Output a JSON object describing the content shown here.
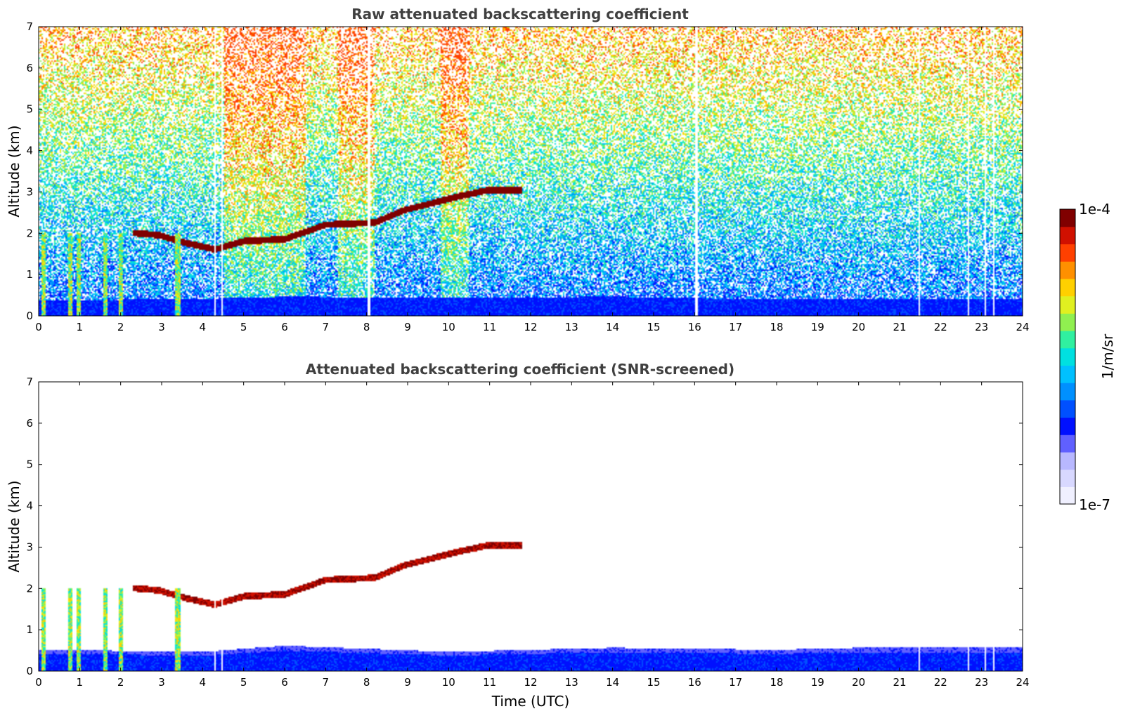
{
  "colormap": [
    "#f0f0ff",
    "#d8d8ff",
    "#b8b8ff",
    "#6060ff",
    "#0010ff",
    "#0050ff",
    "#0090ff",
    "#00c0ff",
    "#00e0e0",
    "#30f0a0",
    "#90f050",
    "#e0f020",
    "#ffd000",
    "#ff9000",
    "#ff4000",
    "#d01000",
    "#800000"
  ],
  "colorbar": {
    "label": "1/m/sr",
    "max_label": "1e-4",
    "min_label": "1e-7"
  },
  "chart_data": [
    {
      "type": "heatmap",
      "title": "Raw attenuated backscattering coefficient",
      "xlabel": "",
      "ylabel": "Altitude (km)",
      "xlim": [
        0,
        24
      ],
      "ylim": [
        0,
        7
      ],
      "xticks": [
        "0",
        "1",
        "2",
        "3",
        "4",
        "5",
        "6",
        "7",
        "8",
        "9",
        "10",
        "11",
        "12",
        "13",
        "14",
        "15",
        "16",
        "17",
        "18",
        "19",
        "20",
        "21",
        "22",
        "23",
        "24"
      ],
      "yticks": [
        "0",
        "1",
        "2",
        "3",
        "4",
        "5",
        "6",
        "7"
      ],
      "noise_background": true,
      "boundary_layer_top_km": [
        [
          0,
          0.35
        ],
        [
          4,
          0.4
        ],
        [
          6,
          0.45
        ],
        [
          10,
          0.42
        ],
        [
          14,
          0.45
        ],
        [
          18,
          0.38
        ],
        [
          20,
          0.4
        ],
        [
          24,
          0.38
        ]
      ],
      "cloud_layer": [
        [
          2.3,
          2.0
        ],
        [
          2.9,
          1.95
        ],
        [
          3.6,
          1.75
        ],
        [
          4.3,
          1.6
        ],
        [
          5,
          1.8
        ],
        [
          6,
          1.85
        ],
        [
          7,
          2.2
        ],
        [
          8.2,
          2.25
        ],
        [
          8.9,
          2.55
        ],
        [
          9.5,
          2.7
        ],
        [
          10.3,
          2.9
        ],
        [
          11,
          3.05
        ],
        [
          11.8,
          3.05
        ]
      ],
      "low_cloud_columns": [
        [
          0.05,
          0.15
        ],
        [
          0.7,
          0.8
        ],
        [
          0.9,
          1.0
        ],
        [
          1.55,
          1.65
        ],
        [
          1.95,
          2.05
        ],
        [
          3.3,
          3.45
        ]
      ],
      "gaps_hours": [
        4.3,
        4.45,
        8.05,
        16.05,
        21.5,
        22.7,
        23.1,
        23.3
      ]
    },
    {
      "type": "heatmap",
      "title": "Attenuated backscattering coefficient (SNR-screened)",
      "xlabel": "Time (UTC)",
      "ylabel": "Altitude (km)",
      "xlim": [
        0,
        24
      ],
      "ylim": [
        0,
        7
      ],
      "xticks": [
        "0",
        "1",
        "2",
        "3",
        "4",
        "5",
        "6",
        "7",
        "8",
        "9",
        "10",
        "11",
        "12",
        "13",
        "14",
        "15",
        "16",
        "17",
        "18",
        "19",
        "20",
        "21",
        "22",
        "23",
        "24"
      ],
      "yticks": [
        "0",
        "1",
        "2",
        "3",
        "4",
        "5",
        "6",
        "7"
      ],
      "noise_background": false,
      "boundary_layer_top_km": [
        [
          0,
          0.5
        ],
        [
          4,
          0.45
        ],
        [
          6,
          0.6
        ],
        [
          10,
          0.45
        ],
        [
          14,
          0.55
        ],
        [
          18,
          0.5
        ],
        [
          20,
          0.55
        ],
        [
          24,
          0.55
        ]
      ],
      "cloud_layer": [
        [
          2.3,
          2.0
        ],
        [
          2.9,
          1.95
        ],
        [
          3.6,
          1.75
        ],
        [
          4.3,
          1.6
        ],
        [
          5,
          1.8
        ],
        [
          6,
          1.85
        ],
        [
          7,
          2.2
        ],
        [
          8.2,
          2.25
        ],
        [
          8.9,
          2.55
        ],
        [
          9.5,
          2.7
        ],
        [
          10.3,
          2.9
        ],
        [
          11,
          3.05
        ],
        [
          11.8,
          3.05
        ]
      ],
      "low_cloud_columns": [
        [
          0.05,
          0.15
        ],
        [
          0.7,
          0.8
        ],
        [
          0.9,
          1.0
        ],
        [
          1.55,
          1.65
        ],
        [
          1.95,
          2.05
        ],
        [
          3.3,
          3.45
        ]
      ],
      "gaps_hours": [
        4.3,
        4.45,
        21.5,
        22.7,
        23.1,
        23.3
      ]
    }
  ]
}
